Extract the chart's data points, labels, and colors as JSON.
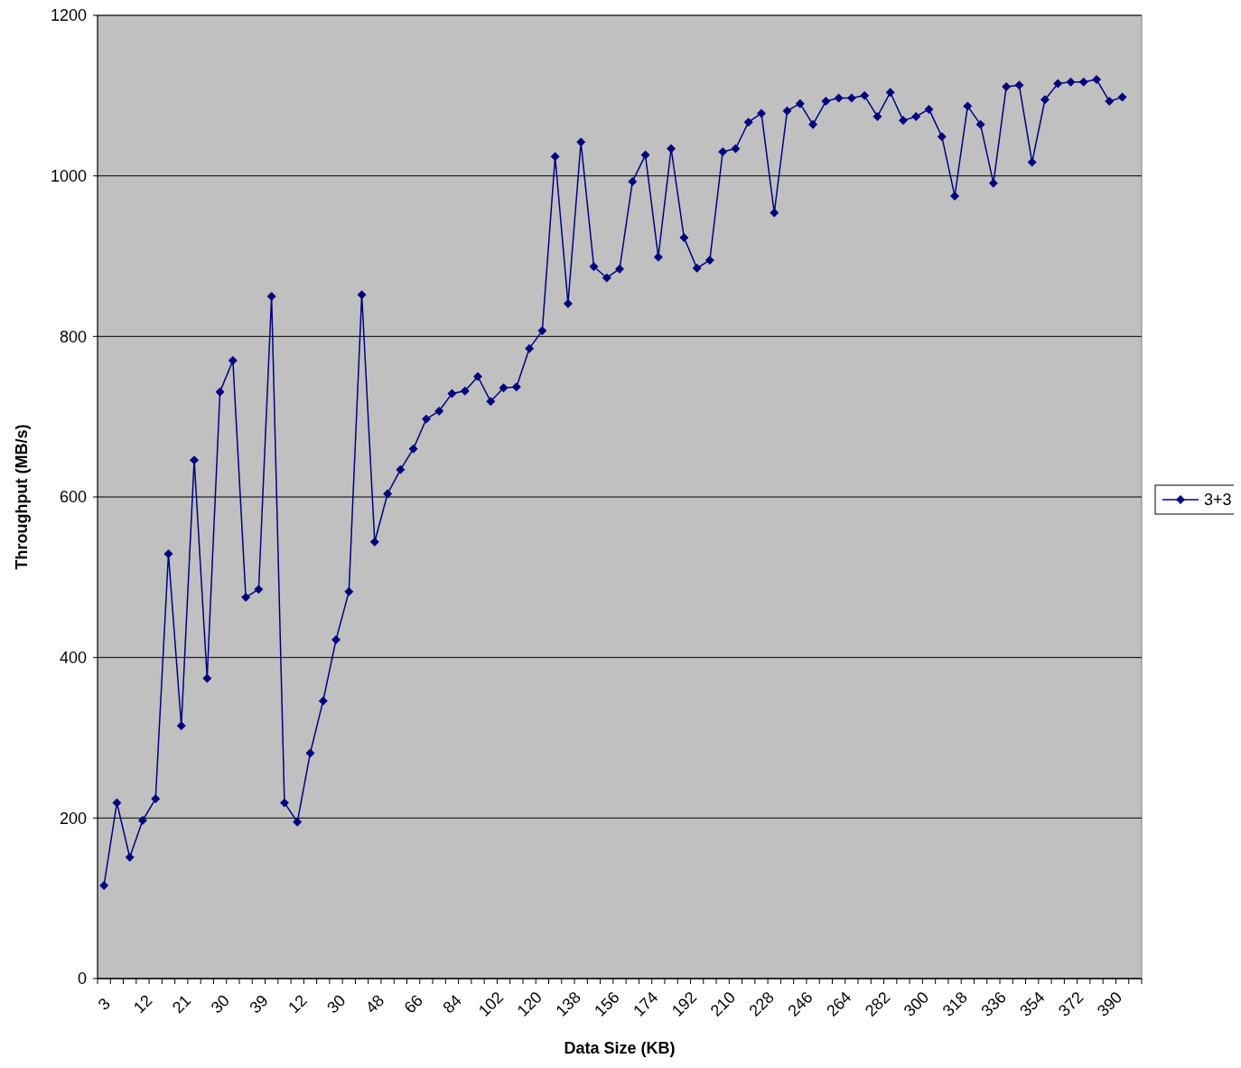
{
  "chart_data": {
    "type": "line",
    "xlabel": "Data Size (KB)",
    "ylabel": "Throughput (MB/s)",
    "categories": [
      "3",
      null,
      null,
      "12",
      null,
      null,
      "21",
      null,
      null,
      "30",
      null,
      null,
      "39",
      null,
      null,
      "12",
      null,
      null,
      "30",
      null,
      null,
      "48",
      null,
      null,
      "66",
      null,
      null,
      "84",
      null,
      null,
      "102",
      null,
      null,
      "120",
      null,
      null,
      "138",
      null,
      null,
      "156",
      null,
      null,
      "174",
      null,
      null,
      "192",
      null,
      null,
      "210",
      null,
      null,
      "228",
      null,
      null,
      "246",
      null,
      null,
      "264",
      null,
      null,
      "282",
      null,
      null,
      "300",
      null,
      null,
      "318",
      null,
      null,
      "336",
      null,
      null,
      "354",
      null,
      null,
      "372",
      null,
      null,
      "390",
      null,
      null
    ],
    "series": [
      {
        "name": "3+3",
        "color": "#000080",
        "values": [
          116,
          219,
          151,
          197,
          224,
          529,
          315,
          646,
          374,
          731,
          770,
          475,
          485,
          850,
          219,
          195,
          281,
          346,
          422,
          482,
          852,
          544,
          604,
          634,
          660,
          697,
          707,
          729,
          732,
          750,
          719,
          736,
          737,
          785,
          807,
          1024,
          841,
          1042,
          887,
          873,
          884,
          993,
          1026,
          899,
          1034,
          923,
          885,
          895,
          1030,
          1034,
          1067,
          1078,
          954,
          1081,
          1090,
          1064,
          1093,
          1097,
          1097,
          1100,
          1074,
          1104,
          1069,
          1074,
          1083,
          1049,
          975,
          1087,
          1064,
          991,
          1111,
          1113,
          1017,
          1095,
          1115,
          1117,
          1117,
          1120,
          1093,
          1098,
          null
        ]
      }
    ],
    "ylim": [
      0,
      1200
    ],
    "yticks": [
      0,
      200,
      400,
      600,
      800,
      1000,
      1200
    ],
    "grid": "y",
    "legend": "right",
    "marker": "diamond",
    "line_style": "solid"
  }
}
